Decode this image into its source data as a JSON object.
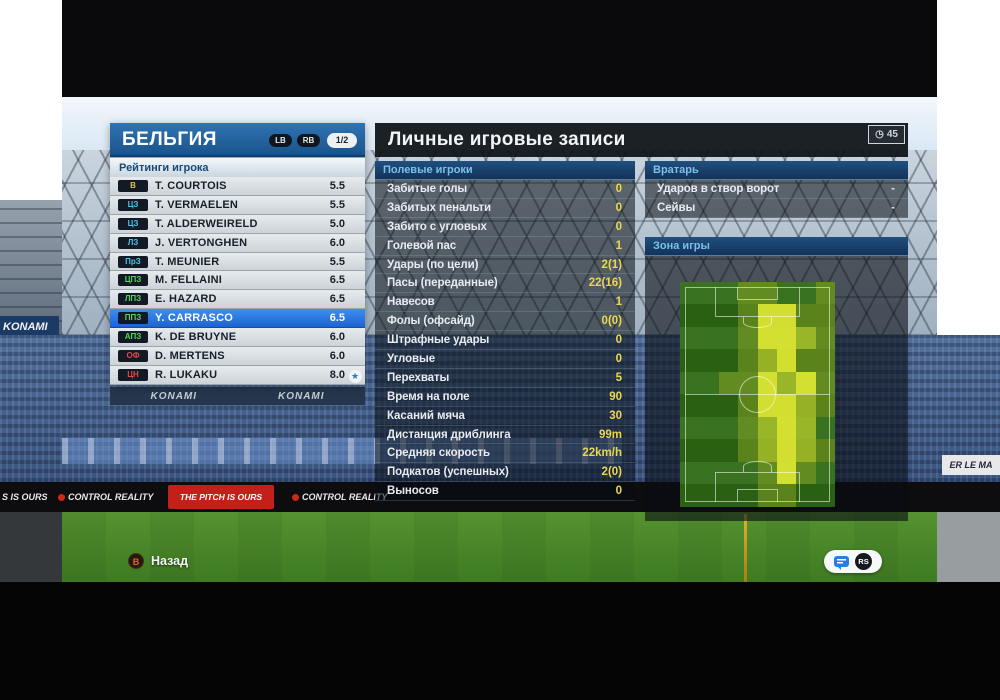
{
  "left_panel": {
    "title": "БЕЛЬГИЯ",
    "buttons": {
      "lb": "LB",
      "rb": "RB",
      "page": "1/2"
    },
    "subheader": "Рейтинги игрока",
    "role_colors": {
      "gk": "#e8c838",
      "df": "#45c8e8",
      "mf": "#55d855",
      "fw": "#e84848"
    },
    "players": [
      {
        "pos": "В",
        "role": "gk",
        "name": "T. COURTOIS",
        "rating": "5.5",
        "selected": false,
        "star": false
      },
      {
        "pos": "ЦЗ",
        "role": "df",
        "name": "T. VERMAELEN",
        "rating": "5.5",
        "selected": false,
        "star": false
      },
      {
        "pos": "ЦЗ",
        "role": "df",
        "name": "T. ALDERWEIRELD",
        "rating": "5.0",
        "selected": false,
        "star": false
      },
      {
        "pos": "ЛЗ",
        "role": "df",
        "name": "J. VERTONGHEN",
        "rating": "6.0",
        "selected": false,
        "star": false
      },
      {
        "pos": "ПрЗ",
        "role": "df",
        "name": "T. MEUNIER",
        "rating": "5.5",
        "selected": false,
        "star": false
      },
      {
        "pos": "ЦПЗ",
        "role": "mf",
        "name": "M. FELLAINI",
        "rating": "6.5",
        "selected": false,
        "star": false
      },
      {
        "pos": "ЛПЗ",
        "role": "mf",
        "name": "E. HAZARD",
        "rating": "6.5",
        "selected": false,
        "star": false
      },
      {
        "pos": "ППЗ",
        "role": "mf",
        "name": "Y. CARRASCO",
        "rating": "6.5",
        "selected": true,
        "star": false
      },
      {
        "pos": "АПЗ",
        "role": "mf",
        "name": "K. DE BRUYNE",
        "rating": "6.0",
        "selected": false,
        "star": false
      },
      {
        "pos": "ОФ",
        "role": "fw",
        "name": "D. MERTENS",
        "rating": "6.0",
        "selected": false,
        "star": false
      },
      {
        "pos": "ЦН",
        "role": "fw",
        "name": "R. LUKAKU",
        "rating": "8.0",
        "selected": false,
        "star": true
      }
    ]
  },
  "right_panel": {
    "title": "Личные игровые записи",
    "clock_value": "45",
    "field_players": {
      "header": "Полевые игроки",
      "stats": [
        {
          "label": "Забитые голы",
          "value": "0"
        },
        {
          "label": "Забитых пенальти",
          "value": "0"
        },
        {
          "label": "Забито с угловых",
          "value": "0"
        },
        {
          "label": "Голевой пас",
          "value": "1"
        },
        {
          "label": "Удары (по цели)",
          "value": "2(1)"
        },
        {
          "label": "Пасы (переданные)",
          "value": "22(16)"
        },
        {
          "label": "Навесов",
          "value": "1"
        },
        {
          "label": "Фолы (офсайд)",
          "value": "0(0)"
        },
        {
          "label": "Штрафные удары",
          "value": "0"
        },
        {
          "label": "Угловые",
          "value": "0"
        },
        {
          "label": "Перехваты",
          "value": "5"
        },
        {
          "label": "Время на поле",
          "value": "90"
        },
        {
          "label": "Касаний мяча",
          "value": "30"
        },
        {
          "label": "Дистанция дриблинга",
          "value": "99m"
        },
        {
          "label": "Средняя скорость",
          "value": "22km/h"
        },
        {
          "label": "Подкатов (успешных)",
          "value": "2(0)"
        },
        {
          "label": "Выносов",
          "value": "0"
        }
      ]
    },
    "goalkeeper": {
      "header": "Вратарь",
      "stats": [
        {
          "label": "Ударов в створ ворот",
          "value": "-"
        },
        {
          "label": "Сейвы",
          "value": "-"
        }
      ]
    },
    "zone": {
      "header": "Зона игры",
      "heatmap": {
        "cols": 8,
        "rows": 10,
        "intensity": [
          "00011001",
          "00013311",
          "00013321",
          "00012311",
          "00113231",
          "00013321",
          "00012320",
          "00012321",
          "00001310",
          "00001100"
        ]
      }
    }
  },
  "bottom_bar": {
    "back_button": "B",
    "back_label": "Назад",
    "rs_label": "RS"
  },
  "background_ads": {
    "konami_left": "KONAMI",
    "konami_band": [
      "KONAMI",
      "KONAMI"
    ],
    "boards": [
      "S IS OURS",
      "CONTROL REALITY",
      "THE PITCH IS OURS",
      "CONTROL REALITY"
    ],
    "right_board": "ER LE MA"
  }
}
